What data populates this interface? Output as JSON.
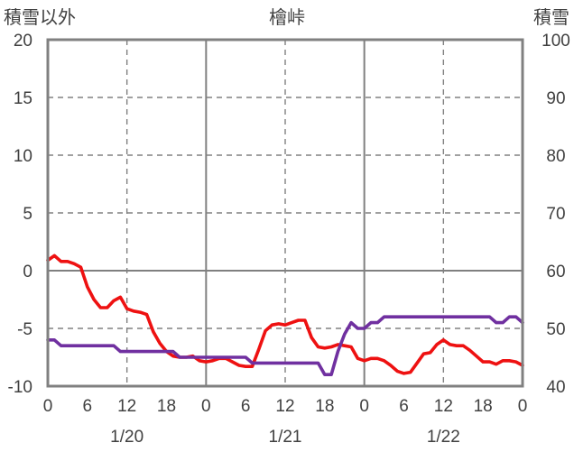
{
  "chart_data": {
    "type": "line",
    "title": "檜峠",
    "left_axis_label": "積雪以外",
    "right_axis_label": "積雪",
    "left_ylim": [
      -10,
      20
    ],
    "left_ticks": [
      20,
      15,
      10,
      5,
      0,
      -5,
      -10
    ],
    "right_ylim": [
      40,
      100
    ],
    "right_ticks": [
      100,
      90,
      80,
      70,
      60,
      50,
      40
    ],
    "x_range_hours": [
      0,
      72
    ],
    "x_tick_labels": [
      "0",
      "6",
      "12",
      "18",
      "0",
      "6",
      "12",
      "18",
      "0",
      "6",
      "12",
      "18",
      "0"
    ],
    "date_labels": [
      "1/20",
      "1/21",
      "1/22"
    ],
    "grid": true,
    "colors": {
      "temperature": "#ee1111",
      "snow_depth": "#7030a0",
      "frame": "#808080"
    },
    "series": [
      {
        "axis": "left",
        "color": "#ee1111",
        "x": [
          0,
          1,
          2,
          3,
          4,
          5,
          6,
          7,
          8,
          9,
          10,
          11,
          12,
          13,
          14,
          15,
          16,
          17,
          18,
          19,
          20,
          21,
          22,
          23,
          24,
          25,
          26,
          27,
          28,
          29,
          30,
          31,
          32,
          33,
          34,
          35,
          36,
          37,
          38,
          39,
          40,
          41,
          42,
          43,
          44,
          45,
          46,
          47,
          48,
          49,
          50,
          51,
          52,
          53,
          54,
          55,
          56,
          57,
          58,
          59,
          60,
          61,
          62,
          63,
          64,
          65,
          66,
          67,
          68,
          69,
          70,
          71,
          72
        ],
        "values": [
          0.9,
          1.3,
          0.8,
          0.8,
          0.6,
          0.3,
          -1.4,
          -2.5,
          -3.2,
          -3.2,
          -2.6,
          -2.3,
          -3.3,
          -3.5,
          -3.6,
          -3.8,
          -5.3,
          -6.3,
          -7.0,
          -7.4,
          -7.5,
          -7.5,
          -7.4,
          -7.8,
          -7.9,
          -7.8,
          -7.6,
          -7.6,
          -7.9,
          -8.2,
          -8.3,
          -8.3,
          -6.8,
          -5.2,
          -4.7,
          -4.6,
          -4.7,
          -4.5,
          -4.3,
          -4.3,
          -5.8,
          -6.6,
          -6.7,
          -6.6,
          -6.4,
          -6.5,
          -6.6,
          -7.6,
          -7.8,
          -7.6,
          -7.6,
          -7.8,
          -8.2,
          -8.7,
          -8.9,
          -8.8,
          -8.0,
          -7.2,
          -7.1,
          -6.4,
          -6.0,
          -6.4,
          -6.5,
          -6.5,
          -6.9,
          -7.4,
          -7.9,
          -7.9,
          -8.1,
          -7.8,
          -7.8,
          -7.9,
          -8.2
        ]
      },
      {
        "axis": "right",
        "color": "#7030a0",
        "x": [
          0,
          1,
          2,
          3,
          4,
          5,
          6,
          7,
          8,
          9,
          10,
          11,
          12,
          13,
          14,
          15,
          16,
          17,
          18,
          19,
          20,
          21,
          22,
          23,
          24,
          25,
          26,
          27,
          28,
          29,
          30,
          31,
          32,
          33,
          34,
          35,
          36,
          37,
          38,
          39,
          40,
          41,
          42,
          43,
          44,
          45,
          46,
          47,
          48,
          49,
          50,
          51,
          52,
          53,
          54,
          55,
          56,
          57,
          58,
          59,
          60,
          61,
          62,
          63,
          64,
          65,
          66,
          67,
          68,
          69,
          70,
          71,
          72
        ],
        "values": [
          48,
          48,
          47,
          47,
          47,
          47,
          47,
          47,
          47,
          47,
          47,
          46,
          46,
          46,
          46,
          46,
          46,
          46,
          46,
          46,
          45,
          45,
          45,
          45,
          45,
          45,
          45,
          45,
          45,
          45,
          45,
          44,
          44,
          44,
          44,
          44,
          44,
          44,
          44,
          44,
          44,
          44,
          42,
          42,
          46,
          49,
          51,
          50,
          50,
          51,
          51,
          52,
          52,
          52,
          52,
          52,
          52,
          52,
          52,
          52,
          52,
          52,
          52,
          52,
          52,
          52,
          52,
          52,
          51,
          51,
          52,
          52,
          51
        ]
      }
    ]
  }
}
